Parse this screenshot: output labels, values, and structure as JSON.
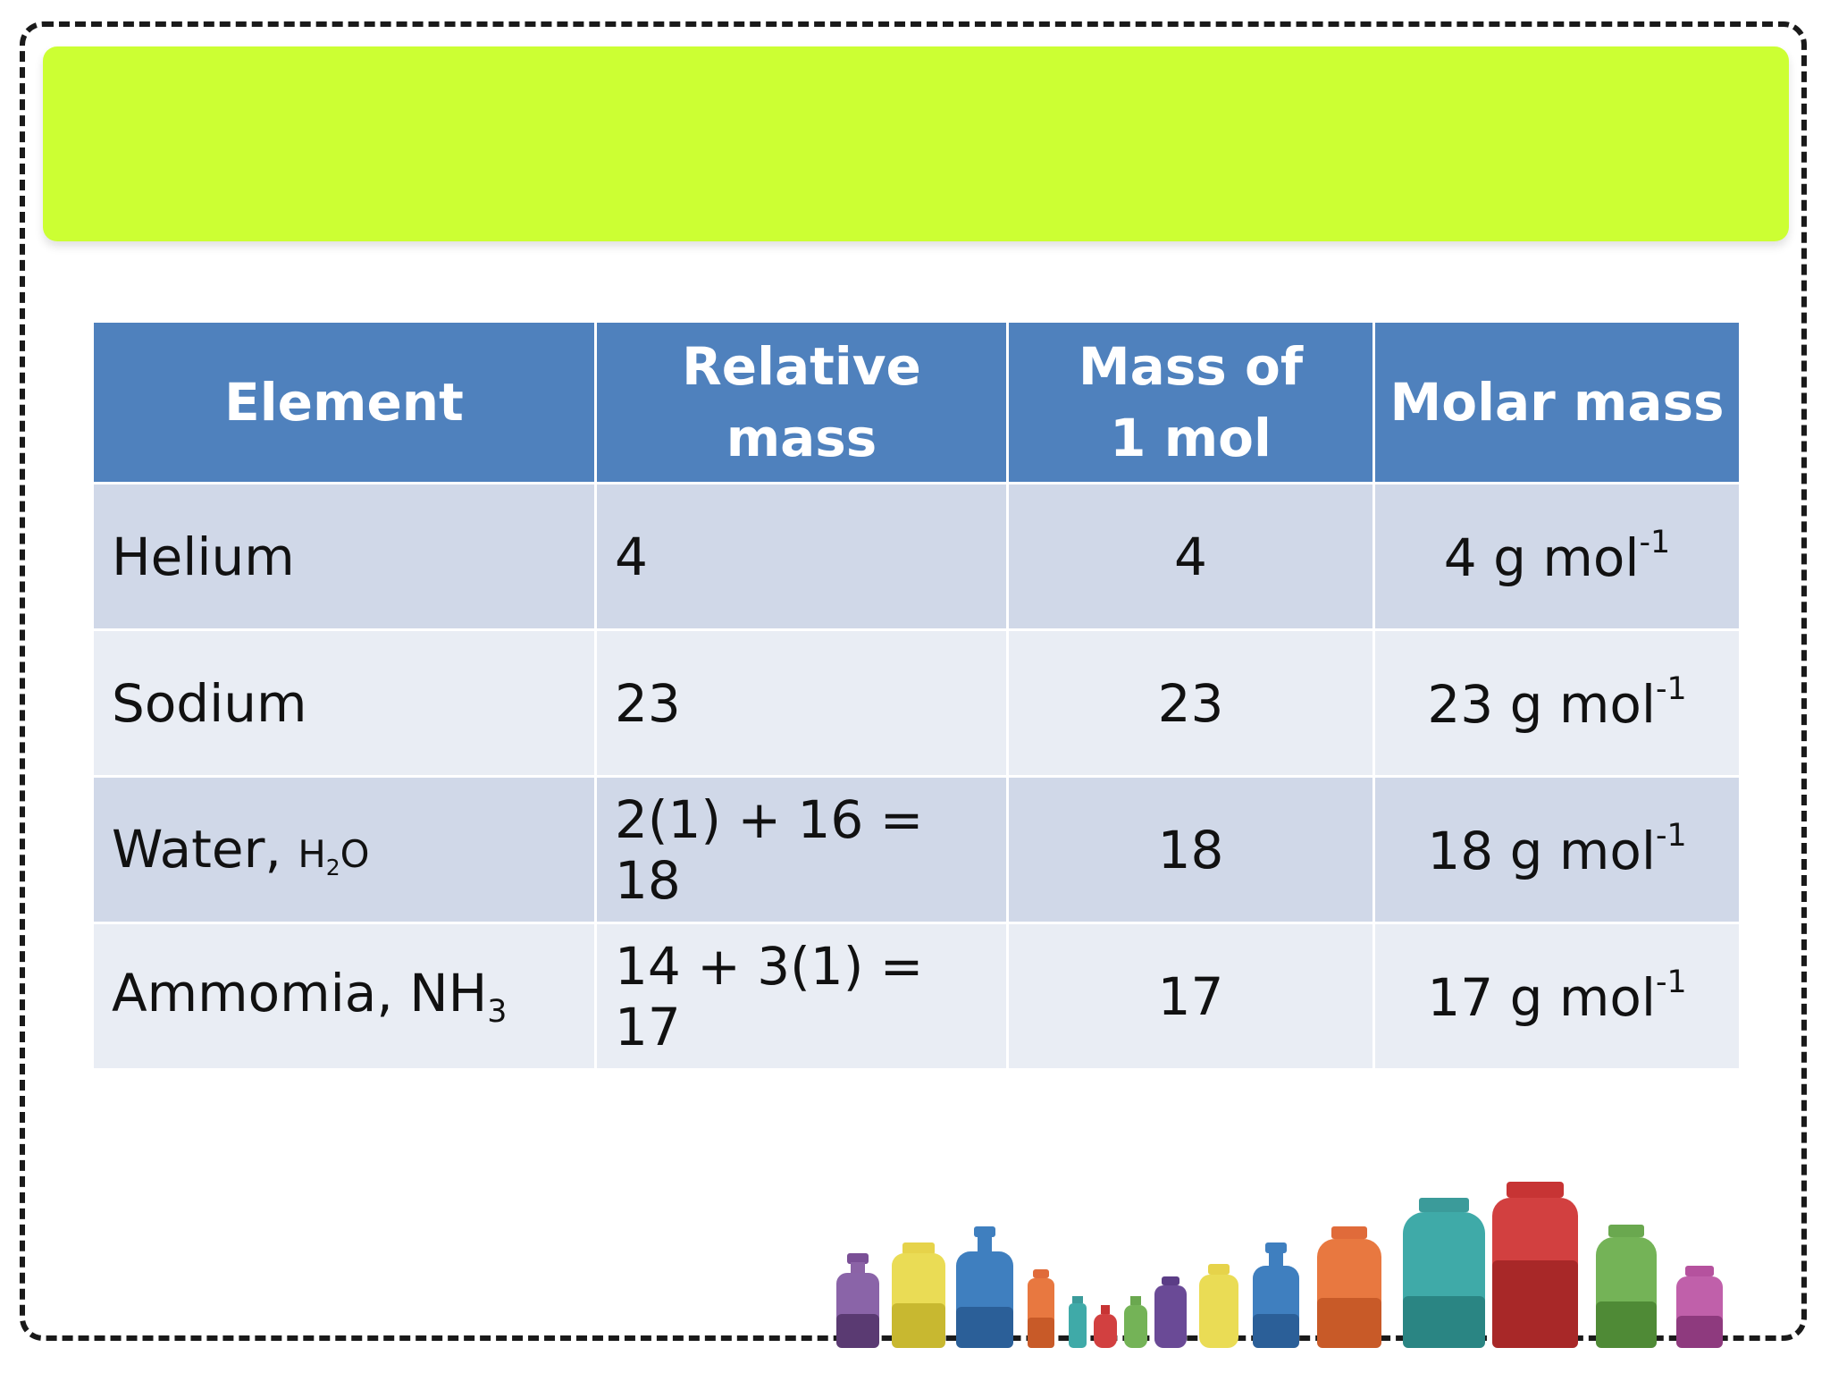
{
  "table": {
    "headers": {
      "element": "Element",
      "relative_mass": "Relative mass",
      "mass_of_1_mol_line1": "Mass of",
      "mass_of_1_mol_line2": "1 mol",
      "molar_mass": "Molar mass"
    },
    "rows": [
      {
        "element": "Helium",
        "formula": "",
        "formula_sub": "",
        "formula_tail": "",
        "relative_mass": "4",
        "mass_of_1_mol": "4",
        "molar_mass": "4 g mol",
        "molar_mass_exp": "-1"
      },
      {
        "element": "Sodium",
        "formula": "",
        "formula_sub": "",
        "formula_tail": "",
        "relative_mass": "23",
        "mass_of_1_mol": "23",
        "molar_mass": "23 g mol",
        "molar_mass_exp": "-1"
      },
      {
        "element": "Water, ",
        "formula": "H",
        "formula_sub": "2",
        "formula_tail": "O",
        "relative_mass": "2(1) + 16 = 18",
        "mass_of_1_mol": "18",
        "molar_mass": "18 g mol",
        "molar_mass_exp": "-1"
      },
      {
        "element": "Ammomia, ",
        "formula": "NH",
        "formula_sub": "3",
        "formula_tail": "",
        "relative_mass": "14 + 3(1) = 17",
        "mass_of_1_mol": "17",
        "molar_mass": "17 g mol",
        "molar_mass_exp": "-1"
      }
    ]
  },
  "decoration": {
    "banner_color": "#ccff33",
    "header_color": "#4f81bd",
    "row_dark_color": "#d0d8e8",
    "row_light_color": "#e9edf4"
  }
}
